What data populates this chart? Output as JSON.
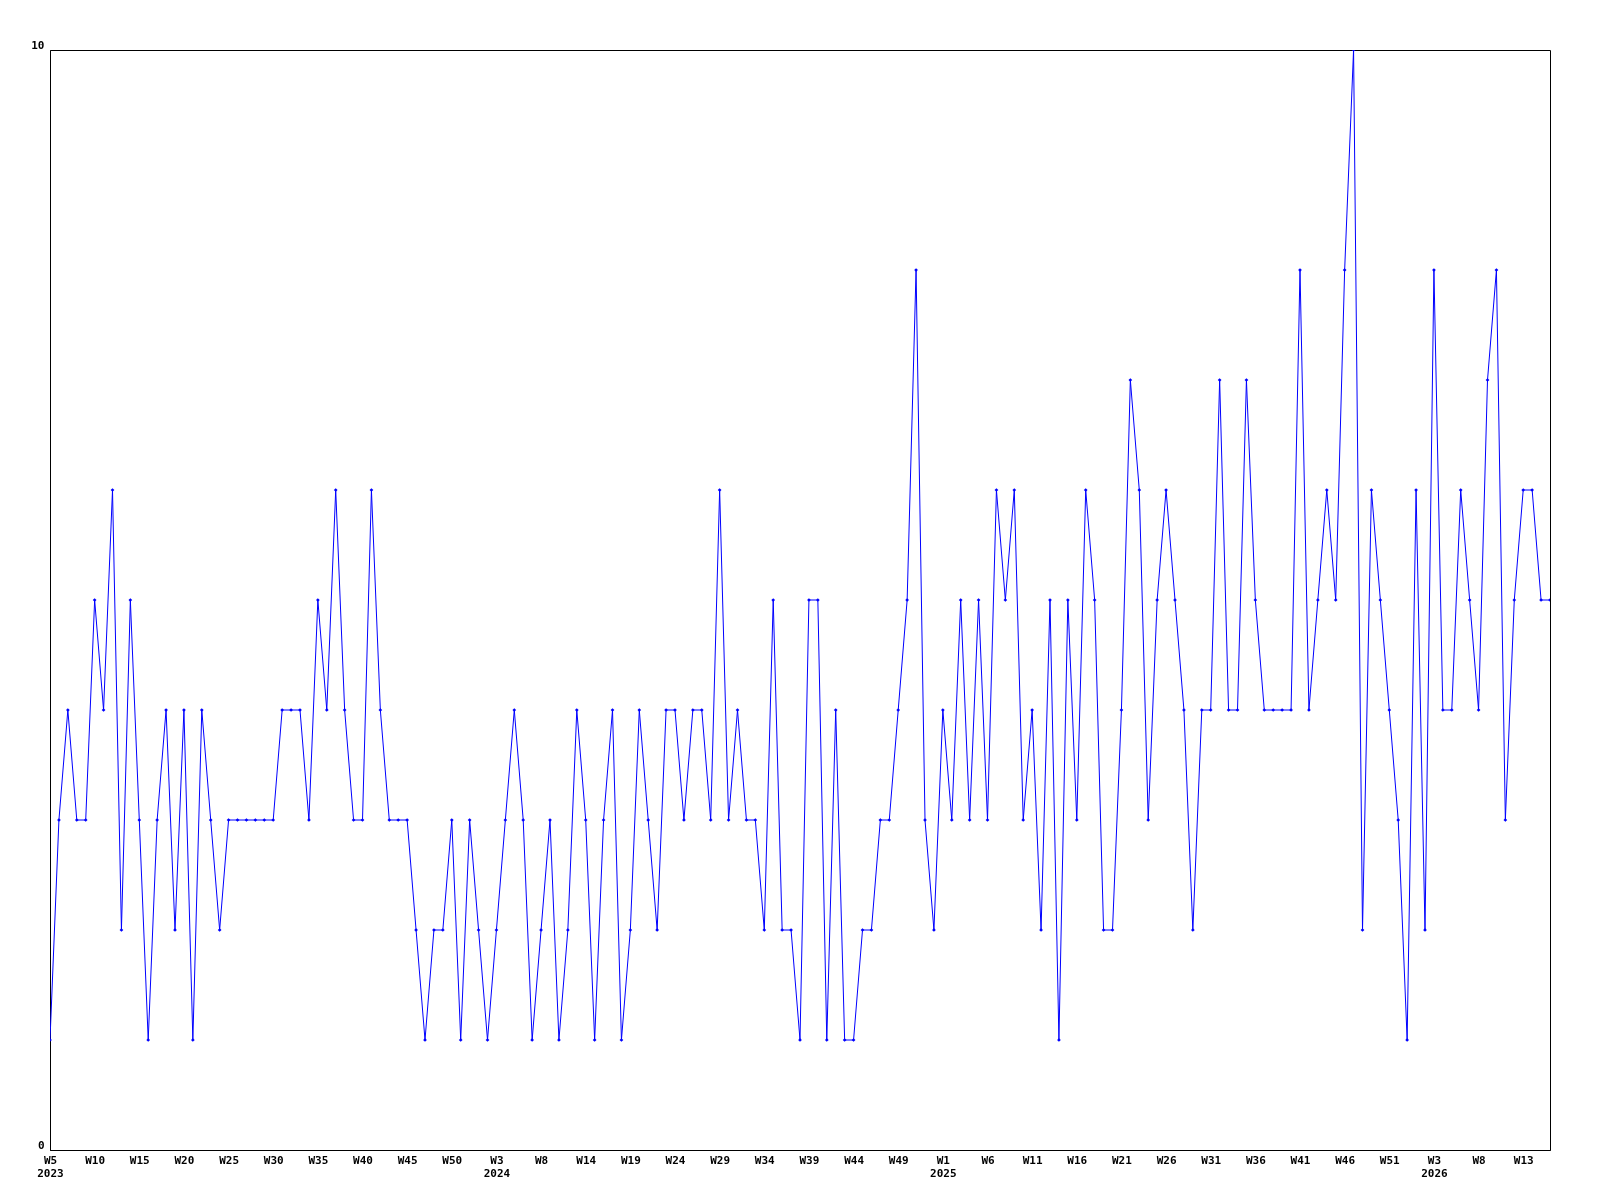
{
  "chart_data": {
    "type": "line",
    "color": "#0000ff",
    "marker": "diamond",
    "line_style": "solid",
    "grid": false,
    "categories": [
      "W5\n2023",
      null,
      null,
      null,
      null,
      "W10",
      null,
      null,
      null,
      null,
      "W15",
      null,
      null,
      null,
      null,
      "W20",
      null,
      null,
      null,
      null,
      "W25",
      null,
      null,
      null,
      null,
      "W30",
      null,
      null,
      null,
      null,
      "W35",
      null,
      null,
      null,
      null,
      "W40",
      null,
      null,
      null,
      null,
      "W45",
      null,
      null,
      null,
      null,
      "W50",
      null,
      null,
      null,
      null,
      "W3\n2024",
      null,
      null,
      null,
      null,
      "W8",
      null,
      null,
      null,
      null,
      "W14",
      null,
      null,
      null,
      null,
      "W19",
      null,
      null,
      null,
      null,
      "W24",
      null,
      null,
      null,
      null,
      "W29",
      null,
      null,
      null,
      null,
      "W34",
      null,
      null,
      null,
      null,
      "W39",
      null,
      null,
      null,
      null,
      "W44",
      null,
      null,
      null,
      null,
      "W49",
      null,
      null,
      null,
      null,
      "W1\n2025",
      null,
      null,
      null,
      null,
      "W6",
      null,
      null,
      null,
      null,
      "W11",
      null,
      null,
      null,
      null,
      "W16",
      null,
      null,
      null,
      null,
      "W21",
      null,
      null,
      null,
      null,
      "W26",
      null,
      null,
      null,
      null,
      "W31",
      null,
      null,
      null,
      null,
      "W36",
      null,
      null,
      null,
      null,
      "W41",
      null,
      null,
      null,
      null,
      "W46",
      null,
      null,
      null,
      null,
      "W51",
      null,
      null,
      null,
      null,
      "W3\n2026",
      null,
      null,
      null,
      null,
      "W8",
      null,
      null,
      null,
      null,
      "W13",
      null,
      null,
      null
    ],
    "values": [
      1,
      3,
      4,
      3,
      3,
      5,
      4,
      6,
      2,
      5,
      3,
      1,
      3,
      4,
      2,
      4,
      1,
      4,
      3,
      2,
      3,
      3,
      3,
      3,
      3,
      3,
      4,
      4,
      4,
      3,
      5,
      4,
      6,
      4,
      3,
      3,
      6,
      4,
      3,
      3,
      3,
      2,
      1,
      2,
      2,
      3,
      1,
      3,
      2,
      1,
      2,
      3,
      4,
      3,
      1,
      2,
      3,
      1,
      2,
      4,
      3,
      1,
      3,
      4,
      1,
      2,
      4,
      3,
      2,
      4,
      4,
      3,
      4,
      4,
      3,
      6,
      3,
      4,
      3,
      3,
      2,
      5,
      2,
      2,
      1,
      5,
      5,
      1,
      4,
      1,
      1,
      2,
      2,
      3,
      3,
      4,
      5,
      8,
      3,
      2,
      4,
      3,
      5,
      3,
      5,
      3,
      6,
      5,
      6,
      3,
      4,
      2,
      5,
      1,
      5,
      3,
      6,
      5,
      2,
      2,
      4,
      7,
      6,
      3,
      5,
      6,
      5,
      4,
      2,
      4,
      4,
      7,
      4,
      4,
      7,
      5,
      4,
      4,
      4,
      4,
      8,
      4,
      5,
      6,
      5,
      8,
      10,
      2,
      6,
      5,
      4,
      3,
      1,
      6,
      2,
      8,
      4,
      4,
      6,
      5,
      4,
      7,
      8,
      3,
      5,
      6,
      6,
      5,
      5
    ],
    "ylim": [
      0,
      10
    ],
    "yticks": [
      0,
      10
    ]
  }
}
